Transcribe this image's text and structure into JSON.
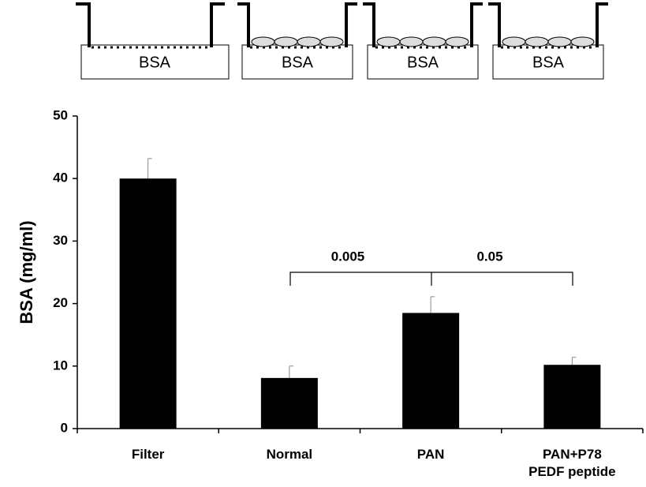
{
  "diagram": {
    "labels": [
      "BSA",
      "BSA",
      "BSA",
      "BSA"
    ]
  },
  "chart_data": {
    "type": "bar",
    "y_label": "BSA (mg/ml)",
    "categories": [
      "Filter",
      "Normal",
      "PAN",
      "PAN+P78\nPEDF peptide"
    ],
    "values": [
      40,
      8.1,
      18.5,
      10.2
    ],
    "errors": [
      3.2,
      1.9,
      2.6,
      1.2
    ],
    "color": "#000000",
    "ylim": [
      0,
      50
    ],
    "yticks": [
      0,
      10,
      20,
      30,
      40,
      50
    ],
    "annotations": [
      "0.005",
      "0.05"
    ]
  }
}
